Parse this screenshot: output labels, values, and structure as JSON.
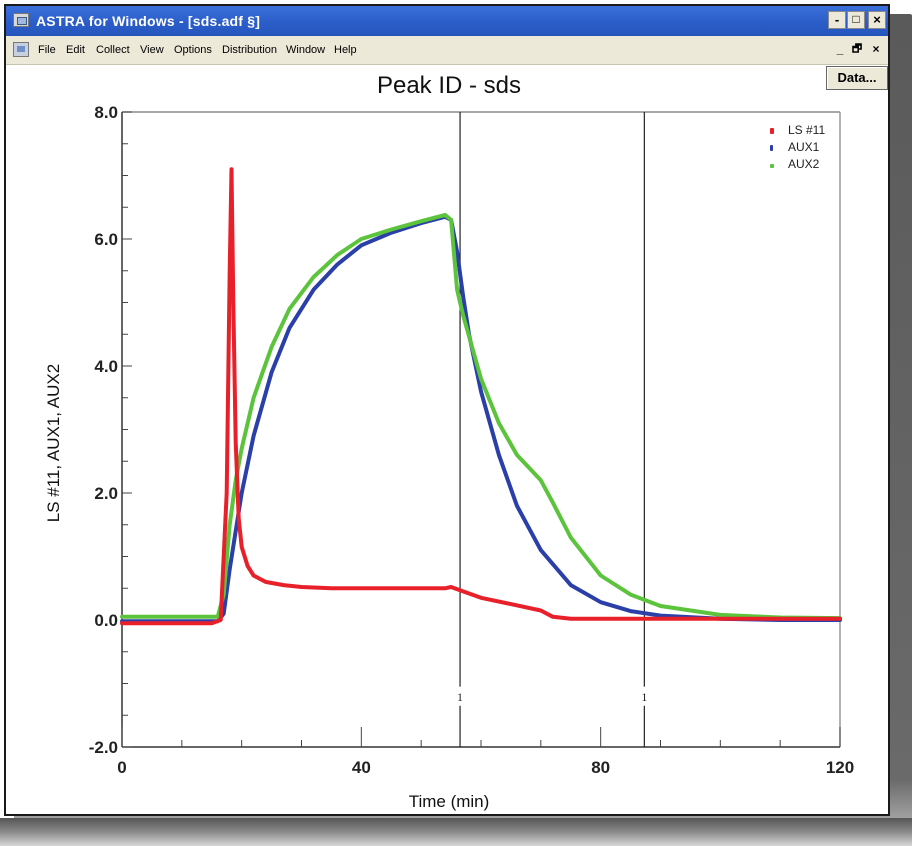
{
  "window": {
    "title": "ASTRA for Windows - [sds.adf  §]",
    "controls": {
      "minimize": "-",
      "maximize": "□",
      "close": "×"
    },
    "mdi_controls": {
      "minimize": "_",
      "restore": "🗗",
      "close": "×"
    }
  },
  "menubar": {
    "items": [
      {
        "label": "File"
      },
      {
        "label": "Edit"
      },
      {
        "label": "Collect"
      },
      {
        "label": "View"
      },
      {
        "label": "Options"
      },
      {
        "label": "Distribution"
      },
      {
        "label": "Window"
      },
      {
        "label": "Help"
      }
    ]
  },
  "toolbar": {
    "data_button": "Data..."
  },
  "colors": {
    "ls11": "#e8202a",
    "aux1": "#2b3fa8",
    "aux2": "#5cc43c",
    "titlebar": "#2a5cc8",
    "marker_line": "#222222"
  },
  "chart_data": {
    "type": "line",
    "title": "Peak ID - sds",
    "xlabel": "Time (min)",
    "ylabel": "LS #11, AUX1, AUX2",
    "xlim": [
      0,
      120
    ],
    "ylim": [
      -2.0,
      8.0
    ],
    "x_ticks": [
      "0",
      "40",
      "80",
      "120"
    ],
    "y_ticks": [
      "8.0",
      "6.0",
      "4.0",
      "2.0",
      "0.0",
      "-2.0"
    ],
    "grid": false,
    "legend_position": "top-right",
    "legend": [
      "LS #11",
      "AUX1",
      "AUX2"
    ],
    "markers": [
      {
        "x": 56.5,
        "label": "1"
      },
      {
        "x": 87.3,
        "label": "1"
      }
    ],
    "series": [
      {
        "name": "LS #11",
        "color": "#e8202a",
        "x": [
          0,
          10,
          15,
          16.5,
          17.5,
          18,
          18.3,
          18.6,
          19,
          19.5,
          20,
          21,
          22,
          24,
          27,
          30,
          35,
          40,
          45,
          50,
          54,
          55,
          57,
          60,
          65,
          70,
          72,
          75,
          80,
          85,
          90,
          100,
          110,
          120
        ],
        "values": [
          -0.05,
          -0.05,
          -0.05,
          0.0,
          2.0,
          5.5,
          7.1,
          5.0,
          2.8,
          1.6,
          1.15,
          0.85,
          0.7,
          0.6,
          0.55,
          0.52,
          0.5,
          0.5,
          0.5,
          0.5,
          0.5,
          0.52,
          0.45,
          0.35,
          0.25,
          0.15,
          0.05,
          0.02,
          0.02,
          0.02,
          0.02,
          0.02,
          0.02,
          0.02
        ]
      },
      {
        "name": "AUX1",
        "color": "#2b3fa8",
        "x": [
          0,
          10,
          16,
          17,
          18,
          19,
          20,
          22,
          25,
          28,
          32,
          36,
          40,
          45,
          50,
          54,
          55,
          56,
          57,
          58,
          60,
          63,
          66,
          70,
          75,
          80,
          85,
          90,
          100,
          110,
          120
        ],
        "values": [
          -0.02,
          -0.02,
          -0.02,
          0.1,
          0.8,
          1.4,
          2.0,
          2.9,
          3.9,
          4.6,
          5.2,
          5.6,
          5.9,
          6.1,
          6.25,
          6.35,
          6.3,
          5.8,
          5.1,
          4.5,
          3.6,
          2.6,
          1.8,
          1.1,
          0.55,
          0.28,
          0.14,
          0.07,
          0.02,
          0.0,
          0.0
        ]
      },
      {
        "name": "AUX2",
        "color": "#5cc43c",
        "x": [
          0,
          10,
          16,
          17,
          18,
          19,
          20,
          22,
          25,
          28,
          32,
          36,
          40,
          45,
          50,
          54,
          55,
          56,
          57,
          60,
          63,
          66,
          70,
          72,
          75,
          80,
          85,
          90,
          100,
          110,
          120
        ],
        "values": [
          0.05,
          0.05,
          0.05,
          0.4,
          1.5,
          2.2,
          2.7,
          3.5,
          4.3,
          4.9,
          5.4,
          5.75,
          6.0,
          6.15,
          6.28,
          6.38,
          6.3,
          5.2,
          4.8,
          3.8,
          3.1,
          2.6,
          2.2,
          1.85,
          1.3,
          0.7,
          0.4,
          0.22,
          0.08,
          0.04,
          0.03
        ]
      }
    ]
  }
}
